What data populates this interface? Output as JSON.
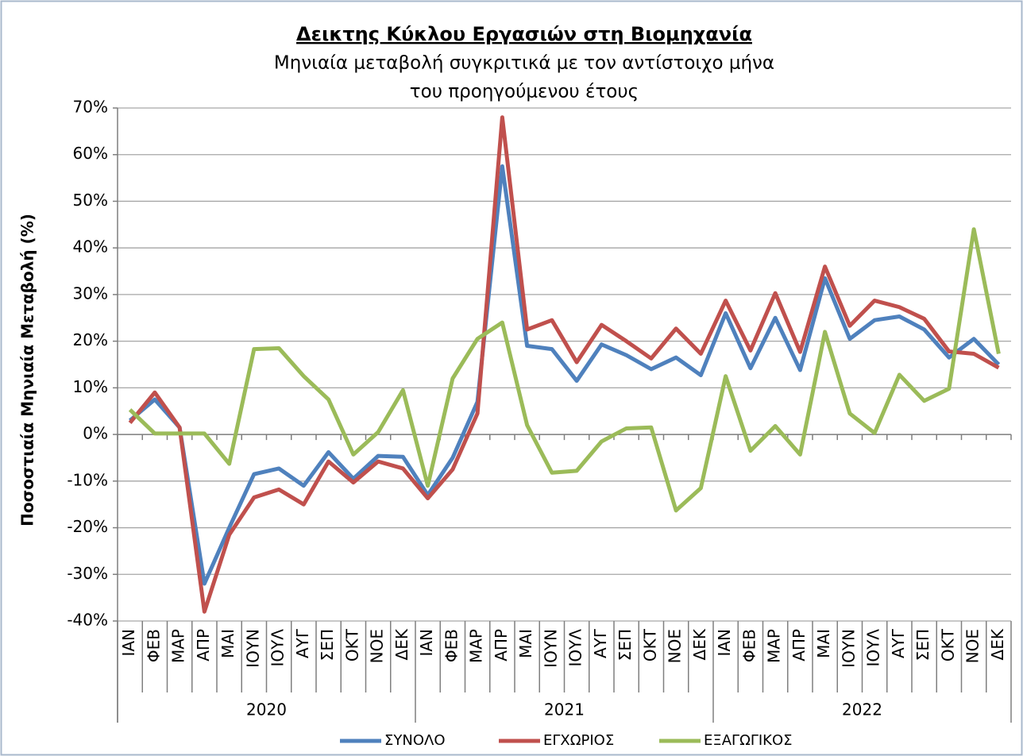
{
  "chart_data": {
    "type": "line",
    "title": "Δεικτης Κύκλου Εργασιών στη Βιομηχανία",
    "subtitle": [
      "Μηνιαία μεταβολή συγκριτικά με τον αντίστοιχο μήνα",
      "του προηγούμενου έτους"
    ],
    "y_label": "Ποσοστιαία Μηνιαία Μεταβολή (%)",
    "categories": [
      "ΙΑΝ",
      "ΦΕΒ",
      "ΜΑΡ",
      "ΑΠΡ",
      "ΜΑΙ",
      "ΙΟΥΝ",
      "ΙΟΥΛ",
      "ΑΥΓ",
      "ΣΕΠ",
      "ΟΚΤ",
      "ΝΟΕ",
      "ΔΕΚ",
      "ΙΑΝ",
      "ΦΕΒ",
      "ΜΑΡ",
      "ΑΠΡ",
      "ΜΑΙ",
      "ΙΟΥΝ",
      "ΙΟΥΛ",
      "ΑΥΓ",
      "ΣΕΠ",
      "ΟΚΤ",
      "ΝΟΕ",
      "ΔΕΚ",
      "ΙΑΝ",
      "ΦΕΒ",
      "ΜΑΡ",
      "ΑΠΡ",
      "ΜΑΙ",
      "ΙΟΥΝ",
      "ΙΟΥΛ",
      "ΑΥΓ",
      "ΣΕΠ",
      "ΟΚΤ",
      "ΝΟΕ",
      "ΔΕΚ"
    ],
    "years": [
      "2020",
      "2021",
      "2022"
    ],
    "series": [
      {
        "name": "ΣΥΝΟΛΟ",
        "color": "#4f81bd",
        "values": [
          3,
          7.5,
          1.5,
          -32,
          -20,
          -8.5,
          -7.3,
          -11,
          -3.8,
          -9.5,
          -4.6,
          -4.8,
          -13,
          -5,
          7,
          57.5,
          19,
          18.3,
          11.5,
          19.3,
          17,
          14,
          16.5,
          12.7,
          26,
          14.2,
          25,
          13.8,
          33.5,
          20.5,
          24.5,
          25.3,
          22.5,
          16.5,
          20.5,
          15
        ]
      },
      {
        "name": "ΕΓΧΩΡΙΟΣ",
        "color": "#c0504d",
        "values": [
          2.5,
          9,
          1.5,
          -38,
          -21.5,
          -13.5,
          -11.8,
          -15,
          -5.8,
          -10.3,
          -5.8,
          -7.3,
          -13.7,
          -7.5,
          4.5,
          68,
          22.5,
          24.5,
          15.5,
          23.5,
          20,
          16.3,
          22.7,
          17.3,
          28.7,
          18,
          30.3,
          17.7,
          36,
          23.3,
          28.7,
          27.3,
          24.8,
          17.8,
          17.3,
          14.3
        ]
      },
      {
        "name": "ΕΞΑΓΩΓΙΚΟΣ",
        "color": "#9bbb59",
        "values": [
          5.3,
          0.2,
          0.2,
          0.2,
          -6.3,
          18.3,
          18.5,
          12.5,
          7.5,
          -4.3,
          0.5,
          9.5,
          -11,
          12,
          20.5,
          24,
          2,
          -8.2,
          -7.8,
          -1.5,
          1.3,
          1.5,
          -16.3,
          -11.5,
          12.5,
          -3.5,
          1.8,
          -4.3,
          22,
          4.5,
          0.3,
          12.8,
          7.2,
          9.8,
          44,
          17.3
        ]
      }
    ],
    "ylim": [
      -40,
      70
    ],
    "yticks": [
      {
        "value": -40,
        "label": "-40%"
      },
      {
        "value": -30,
        "label": "-30%"
      },
      {
        "value": -20,
        "label": "-20%"
      },
      {
        "value": -10,
        "label": "-10%"
      },
      {
        "value": 0,
        "label": "0%"
      },
      {
        "value": 10,
        "label": "10%"
      },
      {
        "value": 20,
        "label": "20%"
      },
      {
        "value": 30,
        "label": "30%"
      },
      {
        "value": 40,
        "label": "40%"
      },
      {
        "value": 50,
        "label": "50%"
      },
      {
        "value": 60,
        "label": "60%"
      },
      {
        "value": 70,
        "label": "70%"
      }
    ],
    "grid": true,
    "legend": "bottom"
  }
}
